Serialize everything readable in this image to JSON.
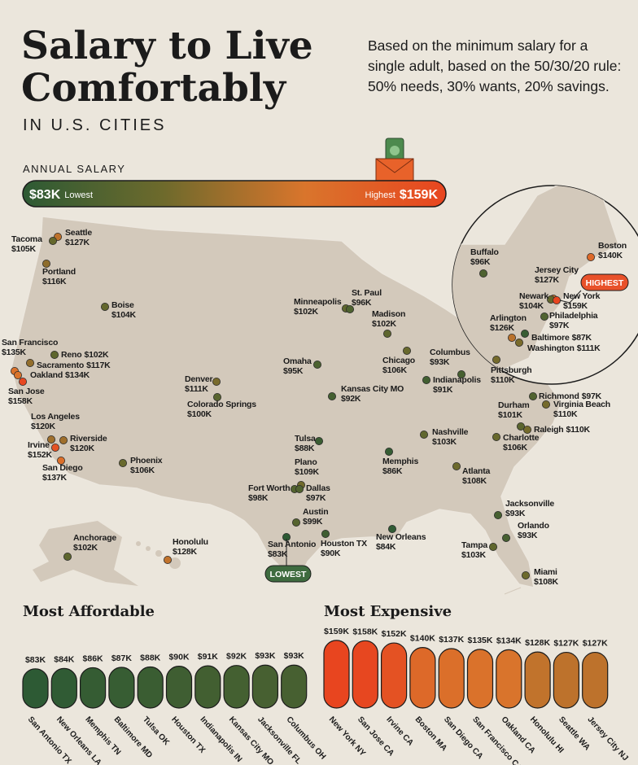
{
  "header": {
    "title_lines": [
      "Salary to Live",
      "Comfortably"
    ],
    "subtitle": "IN U.S. CITIES",
    "description": [
      "Based on the minimum salary for a",
      "single adult, based on the 50/30/20 rule:",
      "50% needs, 30% wants, 20% savings."
    ]
  },
  "chart_data": [
    {
      "type": "map",
      "legend": {
        "title": "ANNUAL SALARY",
        "ticks": [
          {
            "value": 83,
            "label": "$83K"
          },
          {
            "value": 159,
            "label": "$159K"
          }
        ],
        "low_text": "Lowest",
        "high_text": "Highest",
        "colors": [
          "#2d5a34",
          "#6e6a2c",
          "#d9752c",
          "#e8451f"
        ]
      },
      "callouts": {
        "lowest": "LOWEST",
        "highest": "HIGHEST"
      },
      "cities": [
        {
          "name": "Seattle",
          "value": 127,
          "value_label": "$127K"
        },
        {
          "name": "Tacoma",
          "value": 105,
          "value_label": "$105K"
        },
        {
          "name": "Portland",
          "value": 116,
          "value_label": "$116K"
        },
        {
          "name": "Boise",
          "value": 104,
          "value_label": "$104K"
        },
        {
          "name": "Reno",
          "value": 102,
          "value_label": "$102K"
        },
        {
          "name": "San Francisco",
          "value": 135,
          "value_label": "$135K"
        },
        {
          "name": "Sacramento",
          "value": 117,
          "value_label": "$117K"
        },
        {
          "name": "Oakland",
          "value": 134,
          "value_label": "$134K"
        },
        {
          "name": "San Jose",
          "value": 158,
          "value_label": "$158K"
        },
        {
          "name": "Los Angeles",
          "value": 120,
          "value_label": "$120K"
        },
        {
          "name": "Riverside",
          "value": 120,
          "value_label": "$120K"
        },
        {
          "name": "Irvine",
          "value": 152,
          "value_label": "$152K"
        },
        {
          "name": "San Diego",
          "value": 137,
          "value_label": "$137K"
        },
        {
          "name": "Phoenix",
          "value": 106,
          "value_label": "$106K"
        },
        {
          "name": "Denver",
          "value": 111,
          "value_label": "$111K"
        },
        {
          "name": "Colorado Springs",
          "value": 100,
          "value_label": "$100K"
        },
        {
          "name": "Minneapolis",
          "value": 102,
          "value_label": "$102K"
        },
        {
          "name": "St. Paul",
          "value": 96,
          "value_label": "$96K"
        },
        {
          "name": "Madison",
          "value": 102,
          "value_label": "$102K"
        },
        {
          "name": "Omaha",
          "value": 95,
          "value_label": "$95K"
        },
        {
          "name": "Chicago",
          "value": 106,
          "value_label": "$106K"
        },
        {
          "name": "Kansas City MO",
          "value": 92,
          "value_label": "$92K"
        },
        {
          "name": "Columbus",
          "value": 93,
          "value_label": "$93K"
        },
        {
          "name": "Indianapolis",
          "value": 91,
          "value_label": "$91K"
        },
        {
          "name": "Pittsburgh",
          "value": 110,
          "value_label": "$110K"
        },
        {
          "name": "Tulsa",
          "value": 88,
          "value_label": "$88K"
        },
        {
          "name": "Plano",
          "value": 109,
          "value_label": "$109K"
        },
        {
          "name": "Fort Worth",
          "value": 98,
          "value_label": "$98K"
        },
        {
          "name": "Dallas",
          "value": 97,
          "value_label": "$97K"
        },
        {
          "name": "Austin",
          "value": 99,
          "value_label": "$99K"
        },
        {
          "name": "San Antonio",
          "value": 83,
          "value_label": "$83K"
        },
        {
          "name": "Houston TX",
          "value": 90,
          "value_label": "$90K"
        },
        {
          "name": "Memphis",
          "value": 86,
          "value_label": "$86K"
        },
        {
          "name": "Nashville",
          "value": 103,
          "value_label": "$103K"
        },
        {
          "name": "New Orleans",
          "value": 84,
          "value_label": "$84K"
        },
        {
          "name": "Atlanta",
          "value": 108,
          "value_label": "$108K"
        },
        {
          "name": "Charlotte",
          "value": 106,
          "value_label": "$106K"
        },
        {
          "name": "Raleigh",
          "value": 110,
          "value_label": "$110K"
        },
        {
          "name": "Durham",
          "value": 101,
          "value_label": "$101K"
        },
        {
          "name": "Richmond",
          "value": 97,
          "value_label": "$97K"
        },
        {
          "name": "Virginia Beach",
          "value": 110,
          "value_label": "$110K"
        },
        {
          "name": "Jacksonville",
          "value": 93,
          "value_label": "$93K"
        },
        {
          "name": "Orlando",
          "value": 93,
          "value_label": "$93K"
        },
        {
          "name": "Tampa",
          "value": 103,
          "value_label": "$103K"
        },
        {
          "name": "Miami",
          "value": 108,
          "value_label": "$108K"
        },
        {
          "name": "Anchorage",
          "value": 102,
          "value_label": "$102K"
        },
        {
          "name": "Honolulu",
          "value": 128,
          "value_label": "$128K"
        },
        {
          "name": "Buffalo",
          "value": 96,
          "value_label": "$96K"
        },
        {
          "name": "Boston",
          "value": 140,
          "value_label": "$140K"
        },
        {
          "name": "Jersey City",
          "value": 127,
          "value_label": "$127K"
        },
        {
          "name": "Newark",
          "value": 104,
          "value_label": "$104K"
        },
        {
          "name": "New York",
          "value": 159,
          "value_label": "$159K"
        },
        {
          "name": "Philadelphia",
          "value": 97,
          "value_label": "$97K"
        },
        {
          "name": "Arlington",
          "value": 126,
          "value_label": "$126K"
        },
        {
          "name": "Baltimore",
          "value": 87,
          "value_label": "$87K"
        },
        {
          "name": "Washington",
          "value": 111,
          "value_label": "$111K"
        }
      ]
    },
    {
      "type": "bar",
      "title": "Most Affordable",
      "categories": [
        "San Antonio TX",
        "New Orleans LA",
        "Memphis TN",
        "Baltimore MD",
        "Tulsa OK",
        "Houston TX",
        "Indianapolis IN",
        "Kansas City MO",
        "Jacksonville FL",
        "Columbus OH"
      ],
      "values": [
        83,
        84,
        86,
        87,
        88,
        90,
        91,
        92,
        93,
        93
      ],
      "value_labels": [
        "$83K",
        "$84K",
        "$86K",
        "$87K",
        "$88K",
        "$90K",
        "$91K",
        "$92K",
        "$93K",
        "$93K"
      ]
    },
    {
      "type": "bar",
      "title": "Most Expensive",
      "categories": [
        "New York NY",
        "San Jose CA",
        "Irvine CA",
        "Boston MA",
        "San Diego CA",
        "San Francisco CA",
        "Oakland CA",
        "Honolulu HI",
        "Seattle WA",
        "Jersey City NJ"
      ],
      "values": [
        159,
        158,
        152,
        140,
        137,
        135,
        134,
        128,
        127,
        127
      ],
      "value_labels": [
        "$159K",
        "$158K",
        "$152K",
        "$140K",
        "$137K",
        "$135K",
        "$134K",
        "$128K",
        "$127K",
        "$127K"
      ]
    }
  ]
}
